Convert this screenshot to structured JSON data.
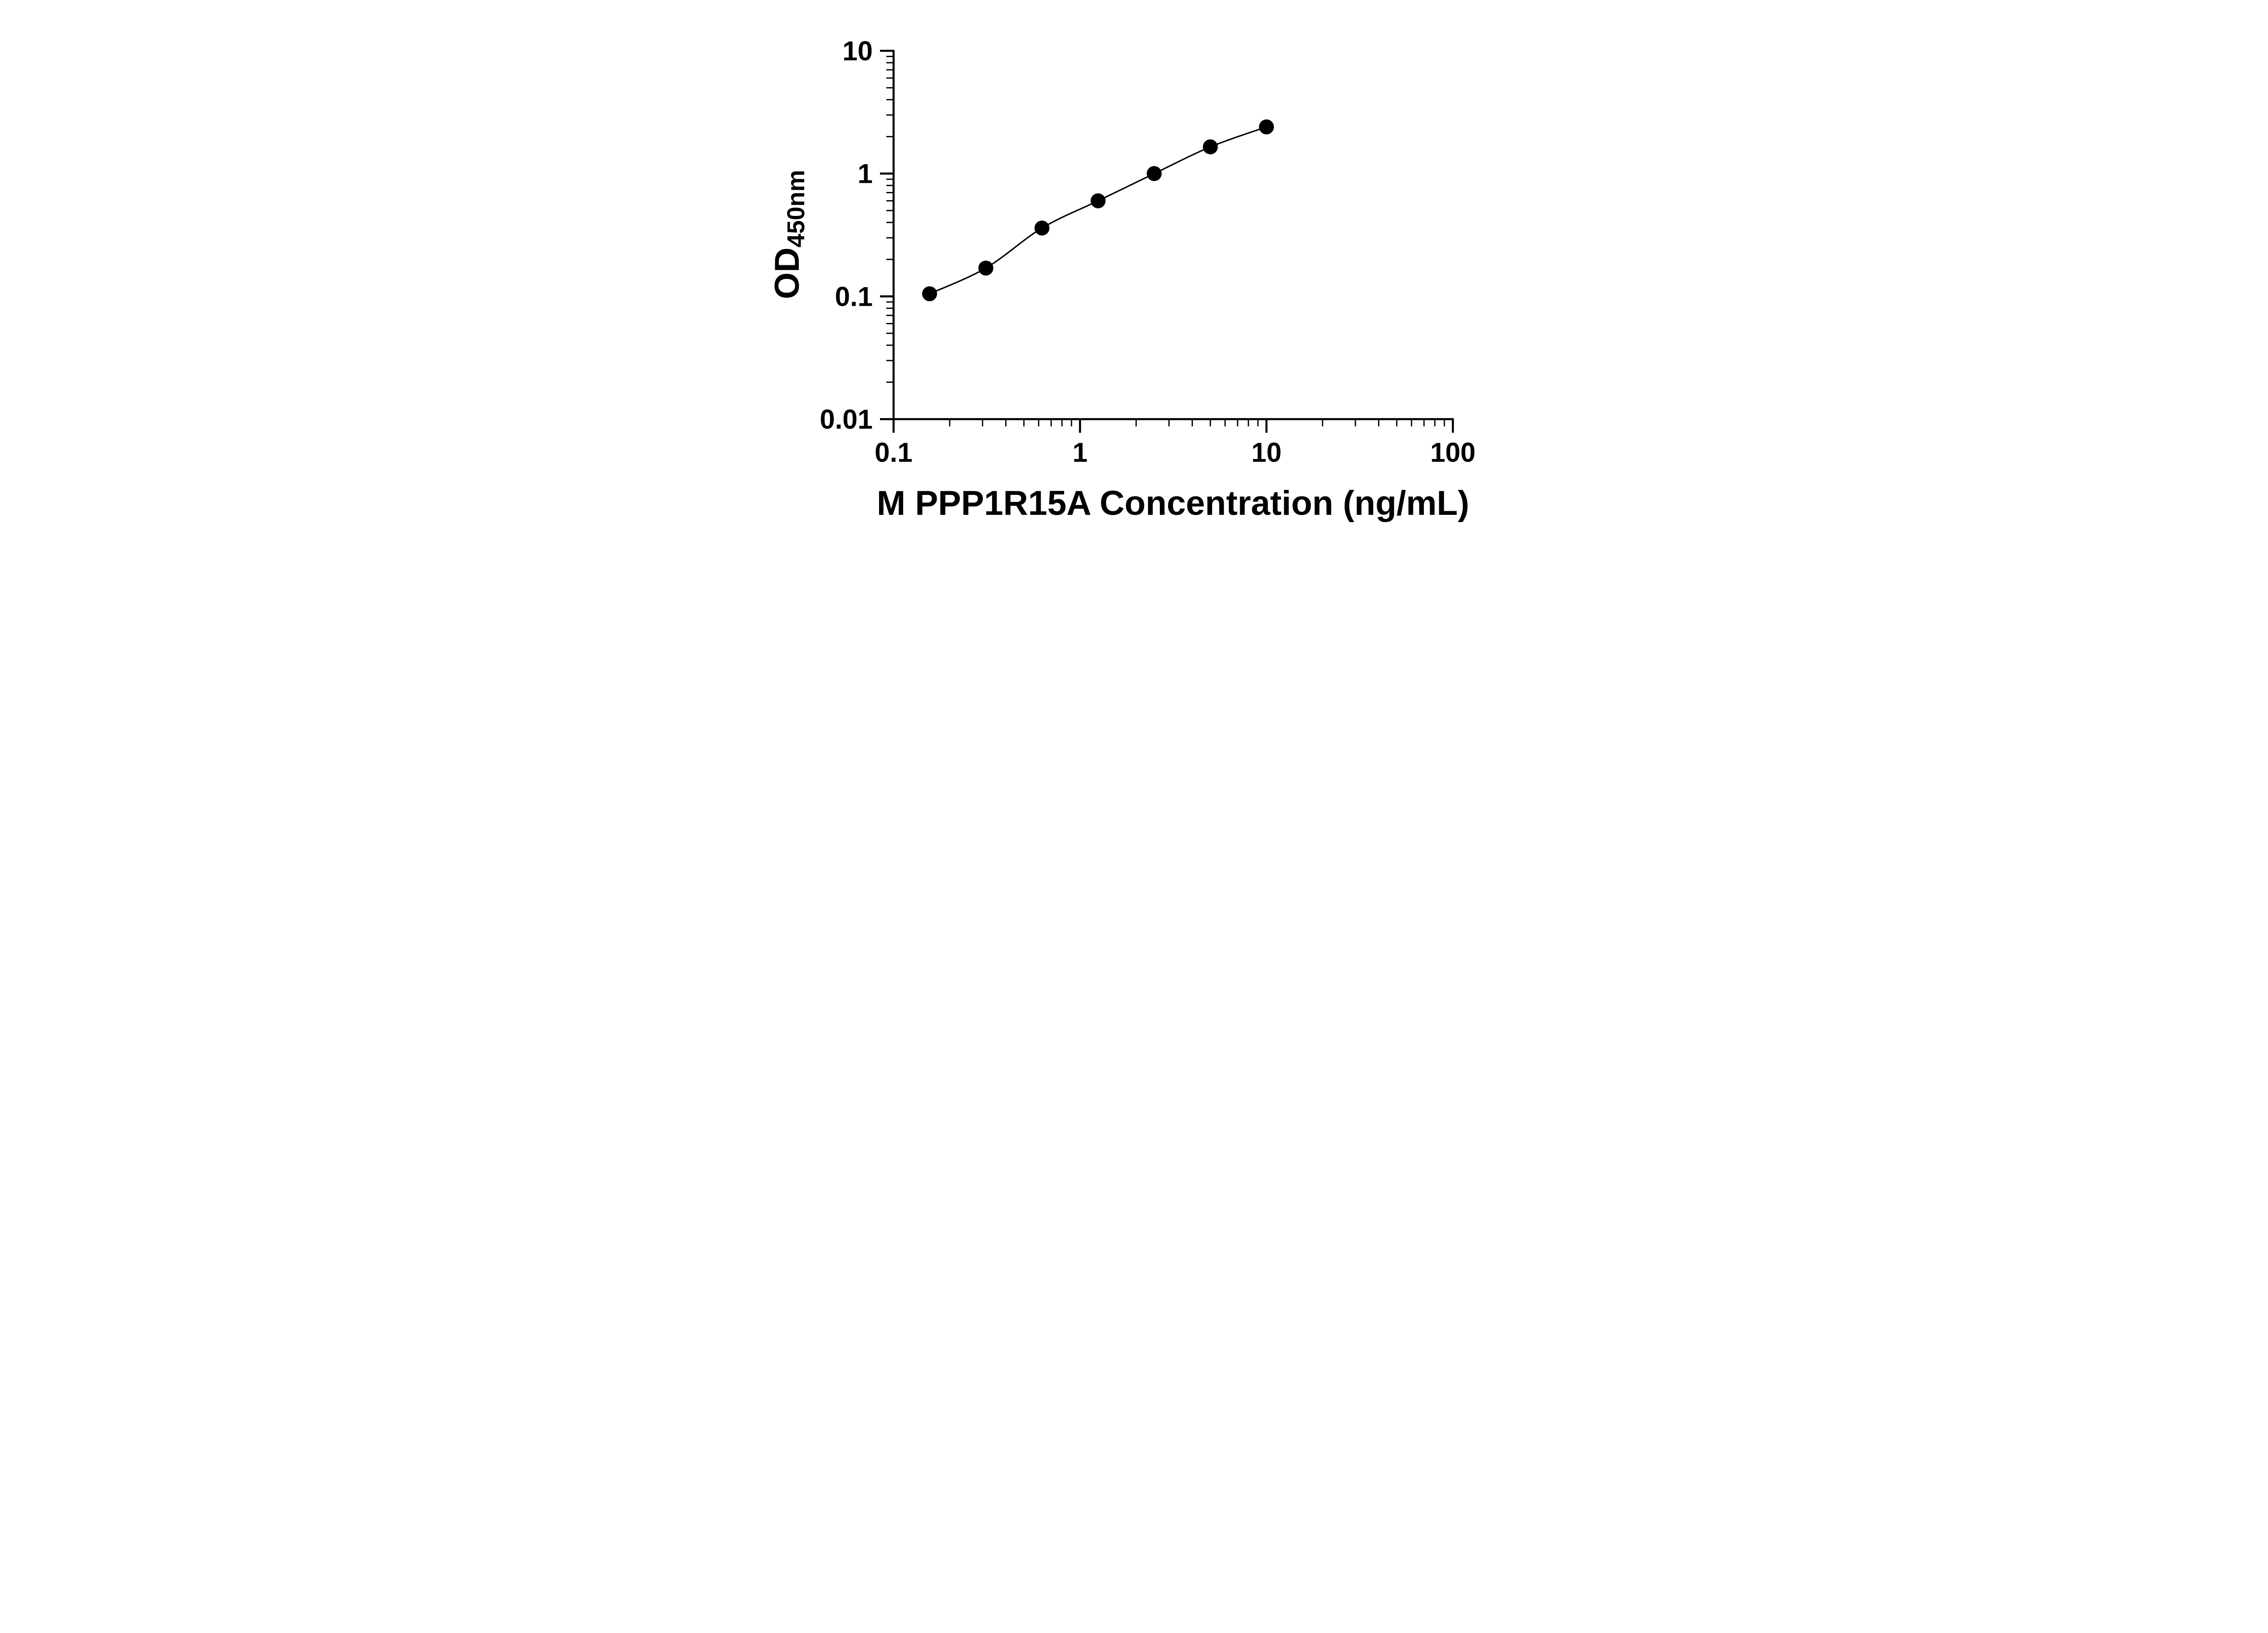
{
  "figure": {
    "background": "#ffffff"
  },
  "chart_data": {
    "type": "line",
    "description": "log-log standard curve with round markers and smooth connecting line",
    "x": [
      0.156,
      0.3125,
      0.625,
      1.25,
      2.5,
      5,
      10
    ],
    "y": [
      0.105,
      0.17,
      0.36,
      0.6,
      1.0,
      1.65,
      2.4
    ],
    "xlabel": "M PPP1R15A Concentration (ng/mL)",
    "ylabel_main": "OD",
    "ylabel_sub": "450nm",
    "xscale": "log",
    "yscale": "log",
    "xlim": [
      0.1,
      100
    ],
    "ylim": [
      0.01,
      10
    ],
    "x_ticks": [
      0.1,
      1,
      10,
      100
    ],
    "x_tick_labels": [
      "0.1",
      "1",
      "10",
      "100"
    ],
    "y_ticks": [
      0.01,
      0.1,
      1,
      10
    ],
    "y_tick_labels": [
      "0.01",
      "0.1",
      "1",
      "10"
    ],
    "grid": false,
    "legend": false,
    "axis_color": "#000000",
    "line_color": "#000000",
    "marker_color": "#000000"
  }
}
